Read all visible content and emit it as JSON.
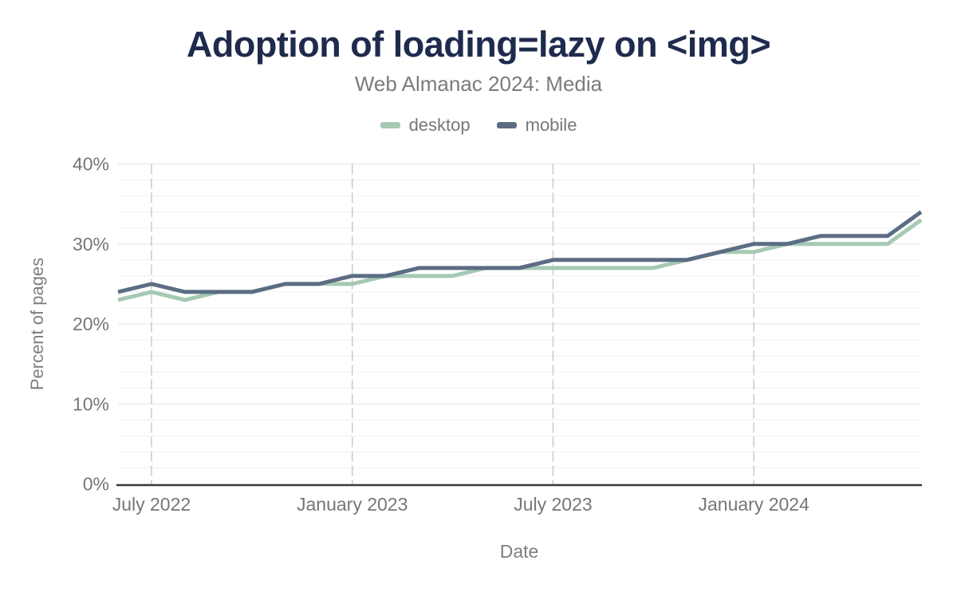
{
  "title": "Adoption of loading=lazy on <img>",
  "subtitle": "Web Almanac 2024: Media",
  "legend": {
    "items": [
      {
        "label": "desktop"
      },
      {
        "label": "mobile"
      }
    ]
  },
  "chart_data": {
    "type": "line",
    "title": "Adoption of loading=lazy on <img>",
    "subtitle": "Web Almanac 2024: Media",
    "xlabel": "Date",
    "ylabel": "Percent of pages",
    "ylim": [
      0,
      40
    ],
    "y_ticks": [
      0,
      10,
      20,
      30,
      40
    ],
    "y_minor_step": 2,
    "y_tick_suffix": "%",
    "grid": true,
    "legend_position": "top",
    "x": [
      "Jun 2022",
      "Jul 2022",
      "Aug 2022",
      "Sep 2022",
      "Oct 2022",
      "Nov 2022",
      "Dec 2022",
      "Jan 2023",
      "Feb 2023",
      "Mar 2023",
      "Apr 2023",
      "May 2023",
      "Jun 2023",
      "Jul 2023",
      "Aug 2023",
      "Sep 2023",
      "Oct 2023",
      "Nov 2023",
      "Dec 2023",
      "Jan 2024",
      "Feb 2024",
      "Mar 2024",
      "Apr 2024",
      "May 2024",
      "Jun 2024"
    ],
    "x_ticks": [
      {
        "index": 1,
        "label": "July 2022"
      },
      {
        "index": 7,
        "label": "January 2023"
      },
      {
        "index": 13,
        "label": "July 2023"
      },
      {
        "index": 19,
        "label": "January 2024"
      }
    ],
    "series": [
      {
        "name": "desktop",
        "color": "#a5c9b3",
        "values": [
          23,
          24,
          23,
          24,
          24,
          25,
          25,
          25,
          26,
          26,
          26,
          27,
          27,
          27,
          27,
          27,
          27,
          28,
          29,
          29,
          30,
          30,
          30,
          30,
          33
        ]
      },
      {
        "name": "mobile",
        "color": "#5b6d83",
        "values": [
          24,
          25,
          24,
          24,
          24,
          25,
          25,
          26,
          26,
          27,
          27,
          27,
          27,
          28,
          28,
          28,
          28,
          28,
          29,
          30,
          30,
          31,
          31,
          31,
          34
        ]
      }
    ]
  },
  "colors": {
    "title": "#1f2b4d",
    "subtitle": "#7b7b7b",
    "tick_label": "#747779",
    "axis_title": "#7b7e82",
    "axis_line": "#37393d",
    "gridline_major": "#e3e4e6",
    "gridline_minor": "#eef0f1",
    "gridline_vertical": "#c8cacc",
    "background": "#ffffff"
  }
}
